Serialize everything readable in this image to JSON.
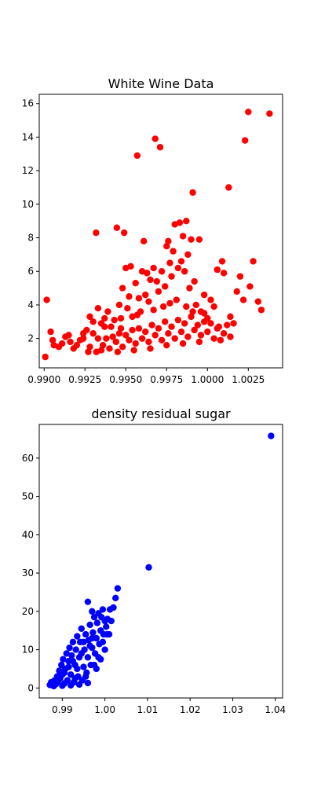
{
  "chart_data": [
    {
      "type": "scatter",
      "title": "White Wine Data",
      "xlabel": "",
      "ylabel": "",
      "color": "#ff0000",
      "xlim": [
        0.9897,
        1.0046
      ],
      "ylim": [
        0.25,
        16.55
      ],
      "x_ticks": [
        0.99,
        0.9925,
        0.995,
        0.9975,
        1.0,
        1.0025
      ],
      "x_tick_labels": [
        "0.9900",
        "0.9925",
        "0.9950",
        "0.9975",
        "1.0000",
        "1.0025"
      ],
      "y_ticks": [
        2,
        4,
        6,
        8,
        10,
        12,
        14,
        16
      ],
      "y_tick_labels": [
        "2",
        "4",
        "6",
        "8",
        "10",
        "12",
        "14",
        "16"
      ],
      "grid": false,
      "points": [
        [
          0.99007,
          0.9
        ],
        [
          0.99016,
          4.3
        ],
        [
          0.9904,
          2.4
        ],
        [
          0.99052,
          1.9
        ],
        [
          0.9906,
          1.6
        ],
        [
          0.9909,
          1.5
        ],
        [
          0.9911,
          1.7
        ],
        [
          0.9913,
          2.1
        ],
        [
          0.9915,
          2.2
        ],
        [
          0.9916,
          1.8
        ],
        [
          0.9918,
          1.4
        ],
        [
          0.992,
          1.6
        ],
        [
          0.9922,
          1.9
        ],
        [
          0.9924,
          2.3
        ],
        [
          0.9926,
          2.5
        ],
        [
          0.9928,
          3.3
        ],
        [
          0.993,
          3.0
        ],
        [
          0.99318,
          8.3
        ],
        [
          0.9933,
          3.8
        ],
        [
          0.9935,
          2.9
        ],
        [
          0.9937,
          3.2
        ],
        [
          0.9939,
          3.6
        ],
        [
          0.9941,
          2.7
        ],
        [
          0.9943,
          3.1
        ],
        [
          0.99445,
          8.6
        ],
        [
          0.9946,
          4.0
        ],
        [
          0.9947,
          2.6
        ],
        [
          0.9948,
          5.0
        ],
        [
          0.9949,
          8.3
        ],
        [
          0.995,
          6.2
        ],
        [
          0.9951,
          3.8
        ],
        [
          0.9952,
          4.5
        ],
        [
          0.9953,
          6.3
        ],
        [
          0.9954,
          3.3
        ],
        [
          0.9956,
          5.3
        ],
        [
          0.9957,
          12.9
        ],
        [
          0.9958,
          4.4
        ],
        [
          0.9959,
          3.6
        ],
        [
          0.996,
          6.0
        ],
        [
          0.9961,
          7.8
        ],
        [
          0.9962,
          4.6
        ],
        [
          0.9963,
          5.9
        ],
        [
          0.9964,
          4.2
        ],
        [
          0.9965,
          5.5
        ],
        [
          0.9967,
          6.2
        ],
        [
          0.9968,
          13.9
        ],
        [
          0.9969,
          5.4
        ],
        [
          0.997,
          4.8
        ],
        [
          0.9971,
          13.4
        ],
        [
          0.9972,
          6.0
        ],
        [
          0.9973,
          3.9
        ],
        [
          0.9974,
          5.1
        ],
        [
          0.9975,
          7.5
        ],
        [
          0.9976,
          7.8
        ],
        [
          0.9977,
          6.5
        ],
        [
          0.9978,
          5.7
        ],
        [
          0.9979,
          7.2
        ],
        [
          0.998,
          8.8
        ],
        [
          0.9981,
          4.3
        ],
        [
          0.9982,
          6.2
        ],
        [
          0.9983,
          8.9
        ],
        [
          0.9984,
          6.6
        ],
        [
          0.9985,
          8.1
        ],
        [
          0.9986,
          6.0
        ],
        [
          0.9987,
          9.0
        ],
        [
          0.9988,
          7.0
        ],
        [
          0.9989,
          5.0
        ],
        [
          0.999,
          7.9
        ],
        [
          0.9991,
          10.7
        ],
        [
          0.9992,
          5.4
        ],
        [
          0.9993,
          4.0
        ],
        [
          0.9995,
          7.9
        ],
        [
          0.9996,
          3.6
        ],
        [
          0.9998,
          4.6
        ],
        [
          1.0,
          3.2
        ],
        [
          1.0002,
          4.3
        ],
        [
          1.0004,
          3.9
        ],
        [
          1.0006,
          6.1
        ],
        [
          1.0007,
          2.7
        ],
        [
          1.0009,
          6.6
        ],
        [
          1.001,
          5.9
        ],
        [
          1.0013,
          11.0
        ],
        [
          1.0014,
          3.3
        ],
        [
          1.0016,
          2.9
        ],
        [
          1.0018,
          4.8
        ],
        [
          1.002,
          5.7
        ],
        [
          1.0022,
          4.3
        ],
        [
          1.0023,
          13.8
        ],
        [
          1.0025,
          15.5
        ],
        [
          1.0026,
          5.1
        ],
        [
          1.0028,
          6.6
        ],
        [
          1.0031,
          4.2
        ],
        [
          1.0033,
          3.7
        ],
        [
          1.0038,
          15.4
        ],
        [
          0.9928,
          1.5
        ],
        [
          0.9932,
          1.2
        ],
        [
          0.9933,
          2.0
        ],
        [
          0.9936,
          1.6
        ],
        [
          0.9938,
          2.0
        ],
        [
          0.994,
          1.4
        ],
        [
          0.9942,
          2.1
        ],
        [
          0.9944,
          1.8
        ],
        [
          0.9946,
          2.3
        ],
        [
          0.9948,
          1.5
        ],
        [
          0.995,
          2.2
        ],
        [
          0.9952,
          1.9
        ],
        [
          0.9954,
          2.5
        ],
        [
          0.9956,
          1.7
        ],
        [
          0.9958,
          2.6
        ],
        [
          0.996,
          2.0
        ],
        [
          0.9962,
          2.4
        ],
        [
          0.9964,
          1.8
        ],
        [
          0.9966,
          2.8
        ],
        [
          0.9968,
          2.2
        ],
        [
          0.997,
          2.6
        ],
        [
          0.9972,
          1.9
        ],
        [
          0.9974,
          3.0
        ],
        [
          0.9976,
          2.3
        ],
        [
          0.9978,
          2.7
        ],
        [
          0.998,
          2.0
        ],
        [
          0.9982,
          3.1
        ],
        [
          0.9984,
          2.4
        ],
        [
          0.9986,
          2.9
        ],
        [
          0.9988,
          2.1
        ],
        [
          0.999,
          3.3
        ],
        [
          0.9992,
          2.5
        ],
        [
          0.9994,
          2.8
        ],
        [
          0.9996,
          2.2
        ],
        [
          0.9998,
          3.0
        ],
        [
          1.0,
          2.4
        ],
        [
          1.0002,
          2.9
        ],
        [
          1.0004,
          2.0
        ],
        [
          1.0006,
          2.6
        ],
        [
          1.0008,
          1.9
        ],
        [
          1.001,
          2.3
        ],
        [
          1.0012,
          2.8
        ],
        [
          1.0014,
          2.1
        ],
        [
          0.9927,
          1.2
        ],
        [
          0.993,
          2.3
        ],
        [
          0.9935,
          1.3
        ],
        [
          0.9945,
          1.2
        ],
        [
          0.9955,
          1.3
        ],
        [
          0.9965,
          1.4
        ],
        [
          0.9975,
          1.6
        ],
        [
          0.9985,
          1.7
        ],
        [
          0.9995,
          1.8
        ],
        [
          0.9998,
          3.5
        ],
        [
          0.9991,
          3.6
        ],
        [
          0.9987,
          3.9
        ],
        [
          0.9977,
          4.1
        ],
        [
          0.9967,
          3.7
        ],
        [
          0.9957,
          3.4
        ],
        [
          0.9947,
          3.2
        ],
        [
          0.9937,
          2.7
        ],
        [
          0.9924,
          2.0
        ]
      ]
    },
    {
      "type": "scatter",
      "title": "density residual sugar",
      "xlabel": "",
      "ylabel": "",
      "color": "#0000ff",
      "xlim": [
        0.9846,
        1.0417
      ],
      "ylim": [
        -2.6,
        68.8
      ],
      "x_ticks": [
        0.99,
        1.0,
        1.01,
        1.02,
        1.03,
        1.04
      ],
      "x_tick_labels": [
        "0.99",
        "1.00",
        "1.01",
        "1.02",
        "1.03",
        "1.04"
      ],
      "y_ticks": [
        0,
        10,
        20,
        30,
        40,
        50,
        60
      ],
      "y_tick_labels": [
        "0",
        "10",
        "20",
        "30",
        "40",
        "50",
        "60"
      ],
      "grid": false,
      "points": [
        [
          0.9871,
          0.8
        ],
        [
          0.9874,
          1.5
        ],
        [
          0.9878,
          1.2
        ],
        [
          0.9882,
          2.0
        ],
        [
          0.9885,
          1.0
        ],
        [
          0.9888,
          3.0
        ],
        [
          0.989,
          1.8
        ],
        [
          0.9893,
          4.5
        ],
        [
          0.9895,
          2.5
        ],
        [
          0.9898,
          6.0
        ],
        [
          0.99,
          3.5
        ],
        [
          0.9902,
          7.5
        ],
        [
          0.9905,
          1.2
        ],
        [
          0.9907,
          5.0
        ],
        [
          0.991,
          9.0
        ],
        [
          0.9912,
          2.0
        ],
        [
          0.9915,
          7.0
        ],
        [
          0.9917,
          10.5
        ],
        [
          0.992,
          3.5
        ],
        [
          0.9922,
          8.5
        ],
        [
          0.9925,
          12.0
        ],
        [
          0.9927,
          1.5
        ],
        [
          0.993,
          6.0
        ],
        [
          0.9932,
          10.0
        ],
        [
          0.9935,
          13.5
        ],
        [
          0.9937,
          3.0
        ],
        [
          0.994,
          8.0
        ],
        [
          0.9942,
          12.0
        ],
        [
          0.9945,
          15.5
        ],
        [
          0.9947,
          2.0
        ],
        [
          0.995,
          5.5
        ],
        [
          0.9952,
          10.0
        ],
        [
          0.9955,
          14.0
        ],
        [
          0.9957,
          4.0
        ],
        [
          0.996,
          8.0
        ],
        [
          0.9962,
          12.5
        ],
        [
          0.9965,
          16.5
        ],
        [
          0.9967,
          6.0
        ],
        [
          0.997,
          10.5
        ],
        [
          0.9972,
          14.5
        ],
        [
          0.9975,
          18.5
        ],
        [
          0.9977,
          9.0
        ],
        [
          0.998,
          13.0
        ],
        [
          0.9982,
          17.0
        ],
        [
          0.9985,
          19.5
        ],
        [
          0.9987,
          11.5
        ],
        [
          0.999,
          15.0
        ],
        [
          0.9992,
          18.5
        ],
        [
          0.9995,
          20.5
        ],
        [
          0.9997,
          14.0
        ],
        [
          1.0,
          17.5
        ],
        [
          1.0003,
          16.0
        ],
        [
          1.0006,
          18.0
        ],
        [
          0.996,
          22.5
        ],
        [
          0.997,
          20.0
        ],
        [
          1.0012,
          20.5
        ],
        [
          1.002,
          21.0
        ],
        [
          1.0025,
          23.5
        ],
        [
          1.003,
          26.0
        ],
        [
          1.0103,
          31.5
        ],
        [
          1.039,
          65.8
        ],
        [
          0.988,
          0.5
        ],
        [
          0.99,
          0.6
        ],
        [
          0.992,
          0.7
        ],
        [
          0.994,
          0.9
        ],
        [
          0.996,
          1.3
        ],
        [
          0.998,
          5.0
        ],
        [
          0.999,
          7.5
        ],
        [
          1.0,
          10.0
        ],
        [
          1.001,
          14.0
        ],
        [
          0.9935,
          5.0
        ],
        [
          0.9945,
          9.0
        ],
        [
          0.9955,
          3.0
        ],
        [
          0.9965,
          11.0
        ],
        [
          0.9975,
          6.0
        ],
        [
          0.9985,
          8.0
        ],
        [
          0.9995,
          12.0
        ],
        [
          1.0005,
          14.0
        ],
        [
          1.0015,
          17.5
        ],
        [
          0.9905,
          4.0
        ],
        [
          0.9915,
          5.5
        ],
        [
          0.9925,
          7.0
        ],
        [
          0.993,
          2.5
        ],
        [
          0.995,
          12.0
        ],
        [
          0.997,
          13.0
        ]
      ]
    }
  ]
}
